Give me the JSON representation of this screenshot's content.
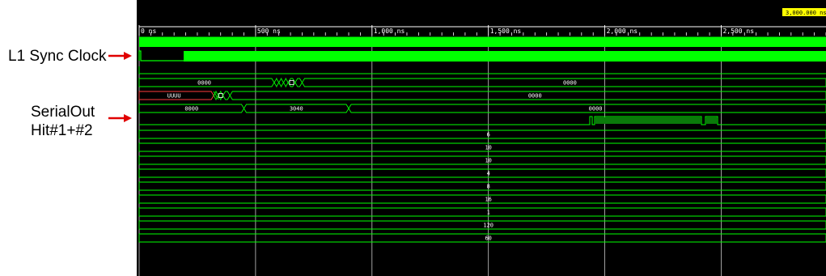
{
  "annotations": {
    "l1_sync_clock": "L1 Sync Clock",
    "serial_out_line1": "SerialOut",
    "serial_out_line2": "Hit#1+#2"
  },
  "timeline": {
    "unit": "ns",
    "start_ns": 0,
    "end_ns": 2950,
    "major_ticks": [
      {
        "t": 0,
        "label": "0 ns"
      },
      {
        "t": 500,
        "label": "500 ns"
      },
      {
        "t": 1000,
        "label": "1,000 ns"
      },
      {
        "t": 1500,
        "label": "1,500 ns"
      },
      {
        "t": 2000,
        "label": "2,000 ns"
      },
      {
        "t": 2500,
        "label": "2,500 ns"
      }
    ],
    "cursor": {
      "t": 3000,
      "label": "3,000.000 ns"
    }
  },
  "colors": {
    "background": "#000000",
    "wave": "#00ff00",
    "grid": "#c8c8c8",
    "undefined": "#ff3c3c",
    "cursor_label_bg": "#ffff00",
    "arrow": "#e00000"
  },
  "buses": [
    {
      "value": "0000",
      "label_t": 280
    },
    {
      "value": "0000",
      "label_t": 1850
    },
    {
      "value": "UUUU",
      "label_t": 150
    },
    {
      "value": "0000",
      "label_t": 1700
    },
    {
      "value": "0000",
      "label_t": 225
    },
    {
      "value": "3040",
      "label_t": 675
    },
    {
      "value": "0000",
      "label_t": 1960
    },
    {
      "value": "6",
      "label_t": 1500
    },
    {
      "value": "10",
      "label_t": 1500
    },
    {
      "value": "10",
      "label_t": 1500
    },
    {
      "value": "4",
      "label_t": 1500
    },
    {
      "value": "8",
      "label_t": 1500
    },
    {
      "value": "16",
      "label_t": 1500
    },
    {
      "value": "1",
      "label_t": 1500
    },
    {
      "value": "120",
      "label_t": 1500
    },
    {
      "value": "60",
      "label_t": 1500
    }
  ]
}
